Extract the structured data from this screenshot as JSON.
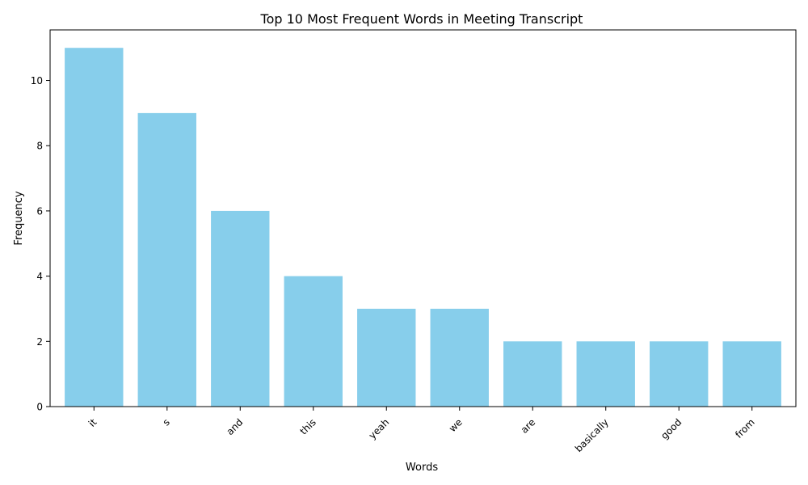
{
  "chart_data": {
    "type": "bar",
    "title": "Top 10 Most Frequent Words in Meeting Transcript",
    "xlabel": "Words",
    "ylabel": "Frequency",
    "categories": [
      "it",
      "s",
      "and",
      "this",
      "yeah",
      "we",
      "are",
      "basically",
      "good",
      "from"
    ],
    "values": [
      11,
      9,
      6,
      4,
      3,
      3,
      2,
      2,
      2,
      2
    ],
    "ylim": [
      0,
      11.55
    ],
    "yticks": [
      0,
      2,
      4,
      6,
      8,
      10
    ],
    "x_tick_rotation": "45 degrees",
    "grid": false,
    "legend": "none",
    "bar_color": "#87ceeb",
    "axis_color": "#000000"
  }
}
